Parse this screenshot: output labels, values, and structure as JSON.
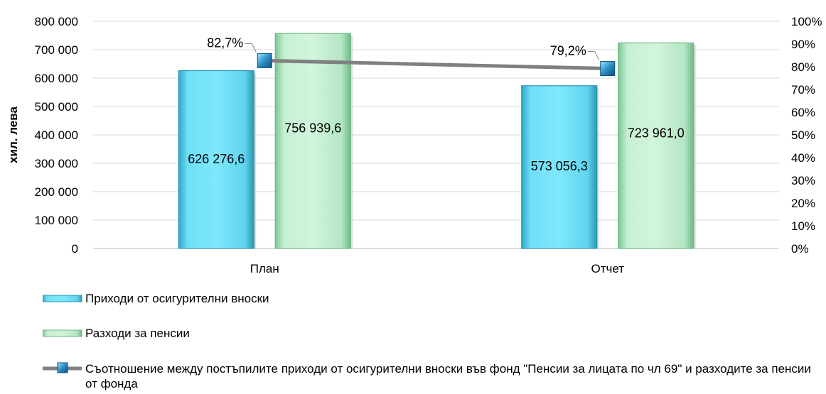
{
  "chart_data": {
    "type": "bar+line",
    "categories": [
      "План",
      "Отчет"
    ],
    "series": [
      {
        "name": "Приходи от осигурителни вноски",
        "type": "bar",
        "axis": "left",
        "color": "#5fd3ee",
        "values": [
          626276.6,
          573056.3
        ],
        "labels": [
          "626 276,6",
          "573 056,3"
        ]
      },
      {
        "name": "Разходи за пенсии",
        "type": "bar",
        "axis": "left",
        "color": "#b4e6c4",
        "values": [
          756939.6,
          723961.0
        ],
        "labels": [
          "756 939,6",
          "723 961,0"
        ]
      },
      {
        "name": "Съотношение между постъпилите приходи от осигурителни вноски във фонд \"Пенсии за лицата по чл 69\" и разходите за пенсии от фонда",
        "type": "line",
        "axis": "right",
        "color": "#808080",
        "marker_color": "#2b8fc4",
        "values": [
          82.7,
          79.2
        ],
        "labels": [
          "82,7%",
          "79,2%"
        ]
      }
    ],
    "ylabel": "хил. лева",
    "ylim": [
      0,
      800000
    ],
    "yticks": [
      0,
      100000,
      200000,
      300000,
      400000,
      500000,
      600000,
      700000,
      800000
    ],
    "ytick_labels": [
      "0",
      "100 000",
      "200 000",
      "300 000",
      "400 000",
      "500 000",
      "600 000",
      "700 000",
      "800 000"
    ],
    "y2lim": [
      0,
      100
    ],
    "y2ticks": [
      0,
      10,
      20,
      30,
      40,
      50,
      60,
      70,
      80,
      90,
      100
    ],
    "y2tick_labels": [
      "0%",
      "10%",
      "20%",
      "30%",
      "40%",
      "50%",
      "60%",
      "70%",
      "80%",
      "90%",
      "100%"
    ],
    "grid": true,
    "legend_position": "bottom-left"
  }
}
